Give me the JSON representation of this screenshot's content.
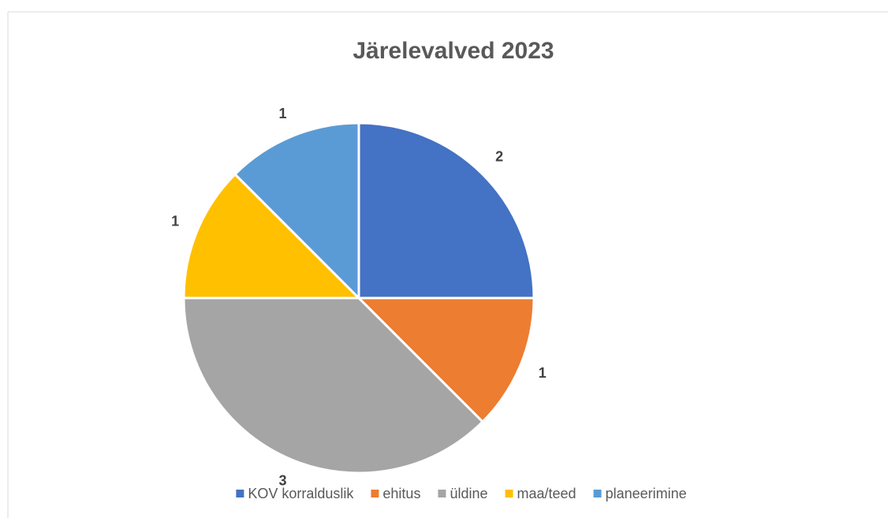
{
  "chart_data": {
    "type": "pie",
    "title": "Järelevalved 2023",
    "categories": [
      "KOV korralduslik",
      "ehitus",
      "üldine",
      "maa/teed",
      "planeerimine"
    ],
    "values": [
      2,
      1,
      3,
      1,
      1
    ],
    "colors": [
      "#4472c4",
      "#ed7d31",
      "#a5a5a5",
      "#ffc000",
      "#5b9bd5"
    ],
    "legend": "bottom"
  }
}
